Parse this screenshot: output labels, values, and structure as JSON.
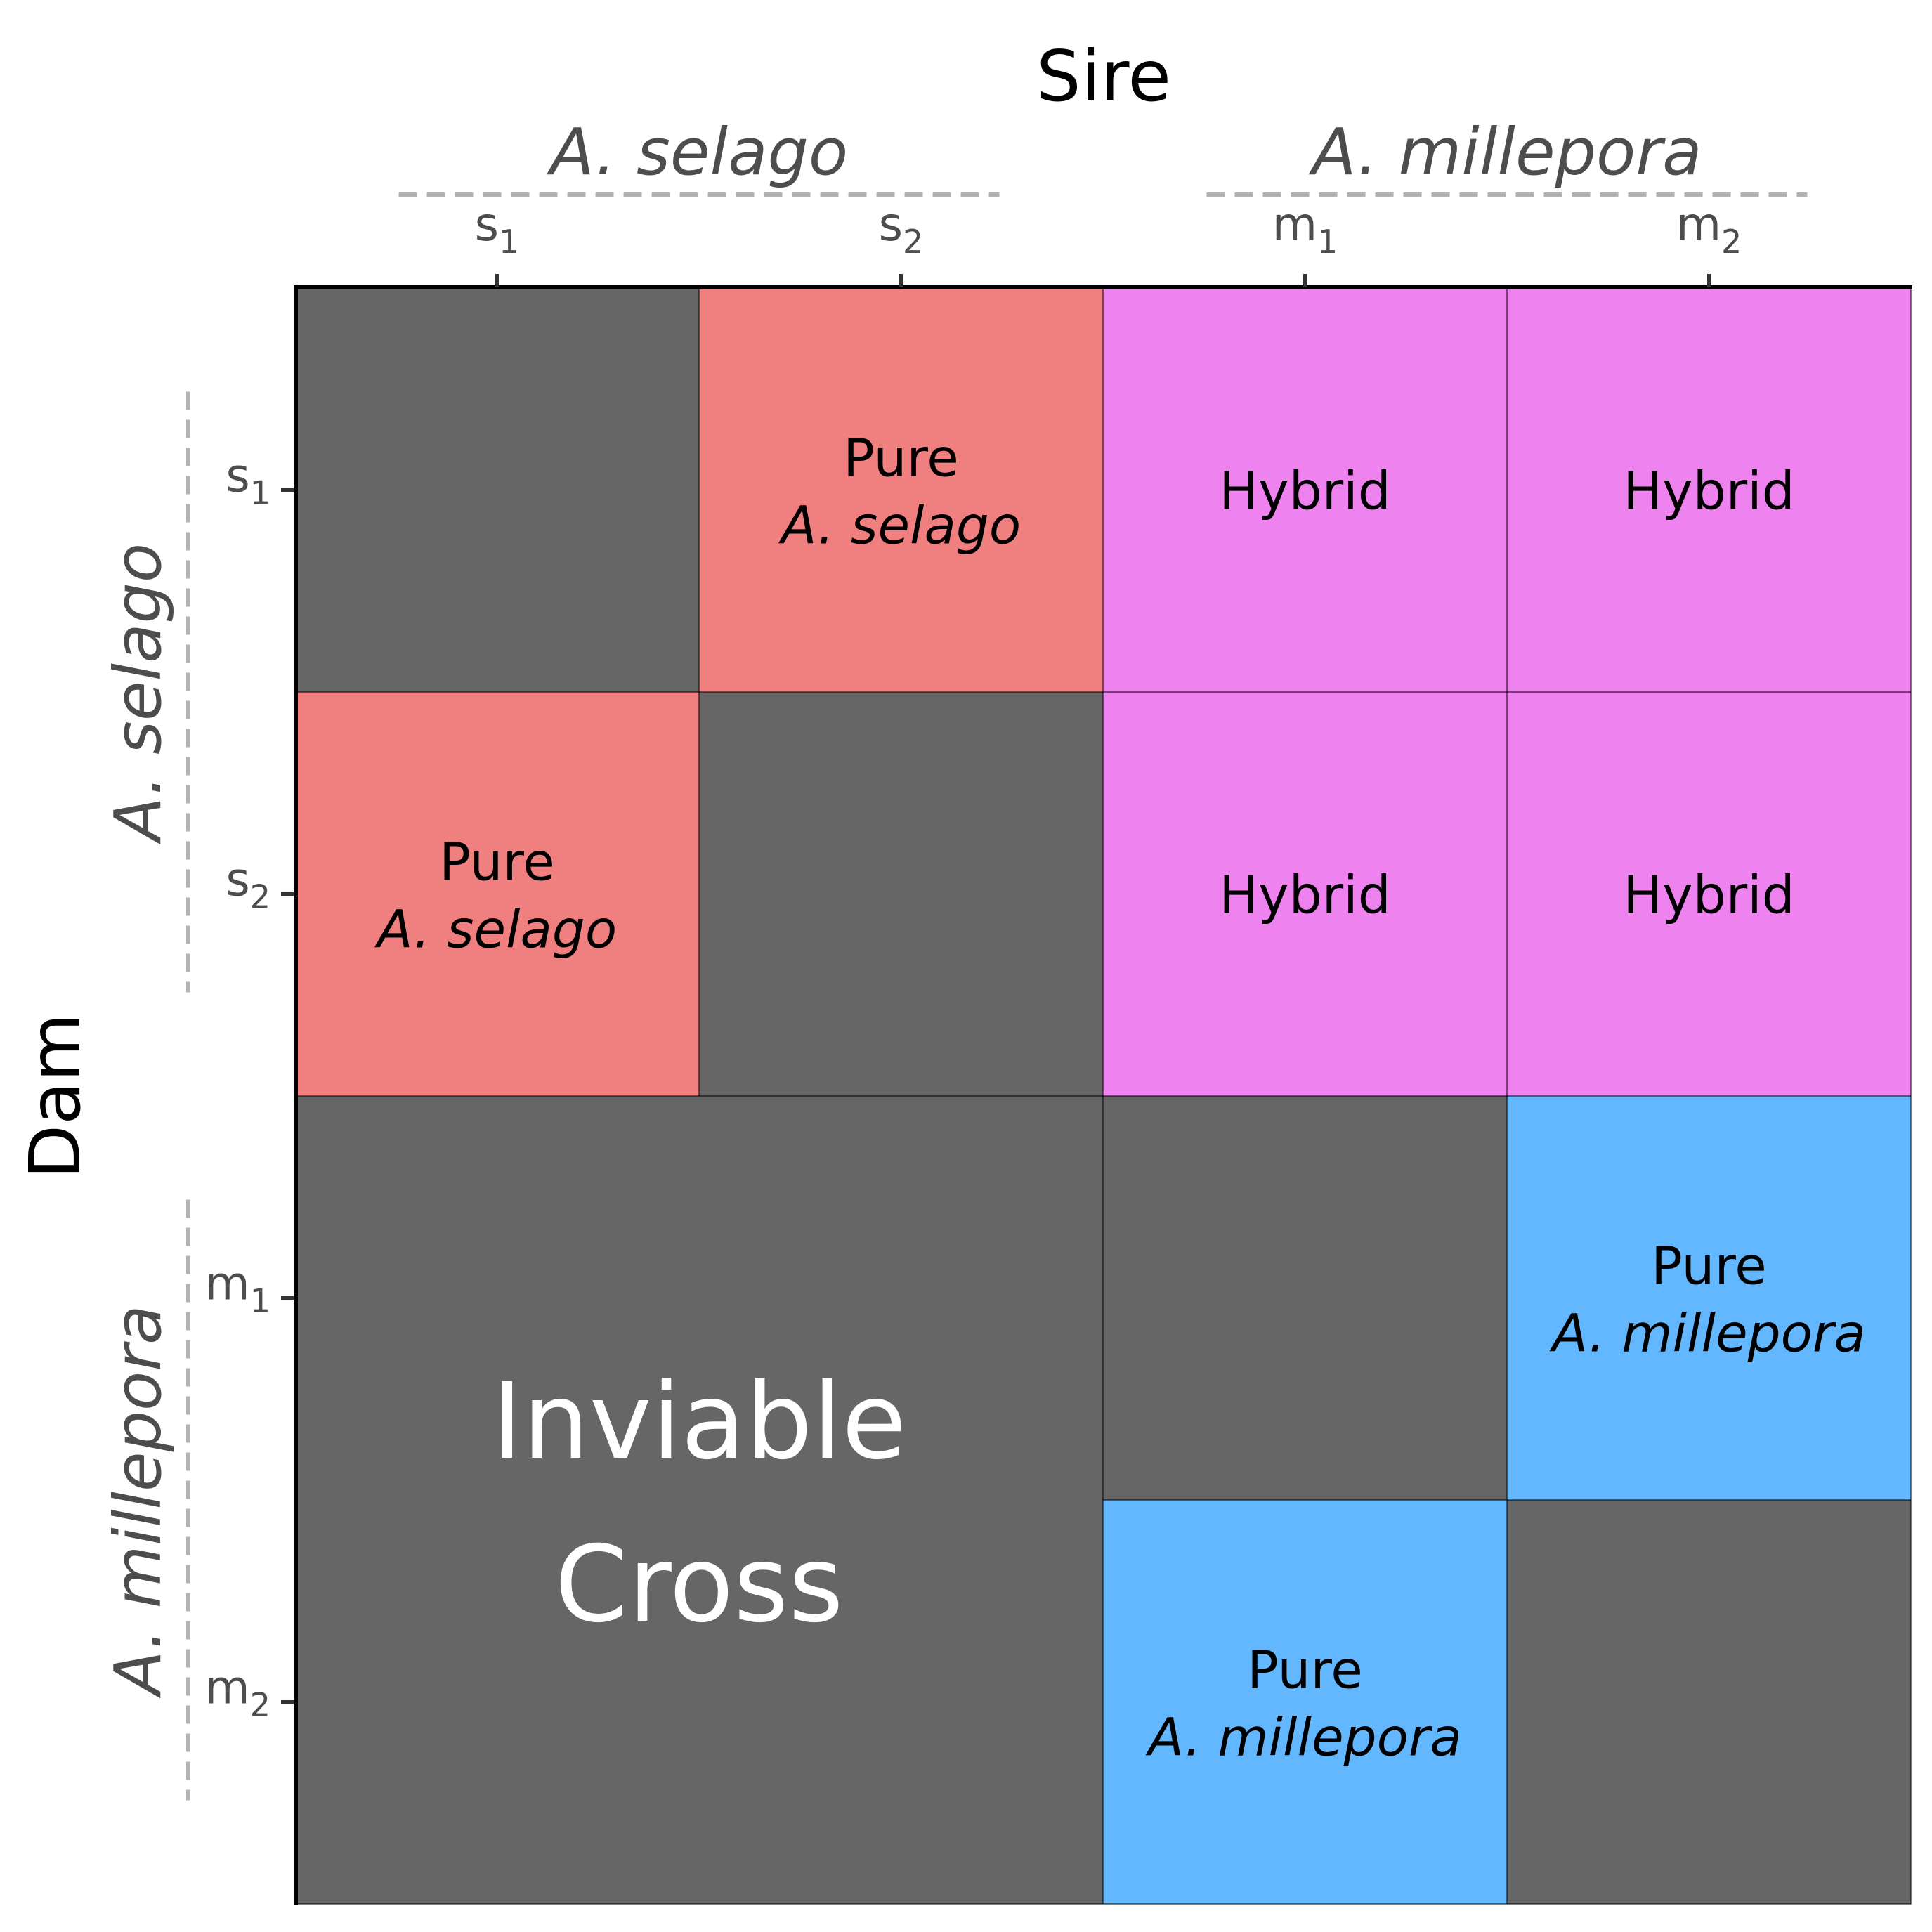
{
  "chart_data": {
    "type": "table",
    "title": "Sire",
    "xlabel": "Sire",
    "ylabel": "Dam",
    "column_groups": [
      "A. selago",
      "A. millepora"
    ],
    "row_groups": [
      "A. selago",
      "A. millepora"
    ],
    "columns": [
      "s",
      "s",
      "m",
      "m"
    ],
    "columns_sub": [
      "1",
      "2",
      "1",
      "2"
    ],
    "rows": [
      "s",
      "s",
      "m",
      "m"
    ],
    "rows_sub": [
      "1",
      "2",
      "1",
      "2"
    ],
    "cells": [
      [
        "none",
        "pure_selago",
        "hybrid",
        "hybrid"
      ],
      [
        "pure_selago",
        "none",
        "hybrid",
        "hybrid"
      ],
      [
        "inviable",
        "inviable",
        "none",
        "pure_millepora"
      ],
      [
        "inviable",
        "inviable",
        "pure_millepora",
        "none"
      ]
    ],
    "categories": {
      "none": {
        "line1": "",
        "line2": "",
        "color": "#666666"
      },
      "pure_selago": {
        "line1": "Pure",
        "line2": "A. selago",
        "color": "#f08080"
      },
      "hybrid": {
        "line1": "Hybrid",
        "line2": "",
        "color": "#ee82ee"
      },
      "pure_millepora": {
        "line1": "Pure",
        "line2": "A. millepora",
        "color": "#63b7ff"
      },
      "inviable": {
        "line1": "Inviable",
        "line2": "Cross",
        "color": "#666666"
      }
    },
    "group_line_color": "#b3b3b3",
    "grid_line_color": "#000000",
    "inviable_text_color": "#ffffff"
  }
}
